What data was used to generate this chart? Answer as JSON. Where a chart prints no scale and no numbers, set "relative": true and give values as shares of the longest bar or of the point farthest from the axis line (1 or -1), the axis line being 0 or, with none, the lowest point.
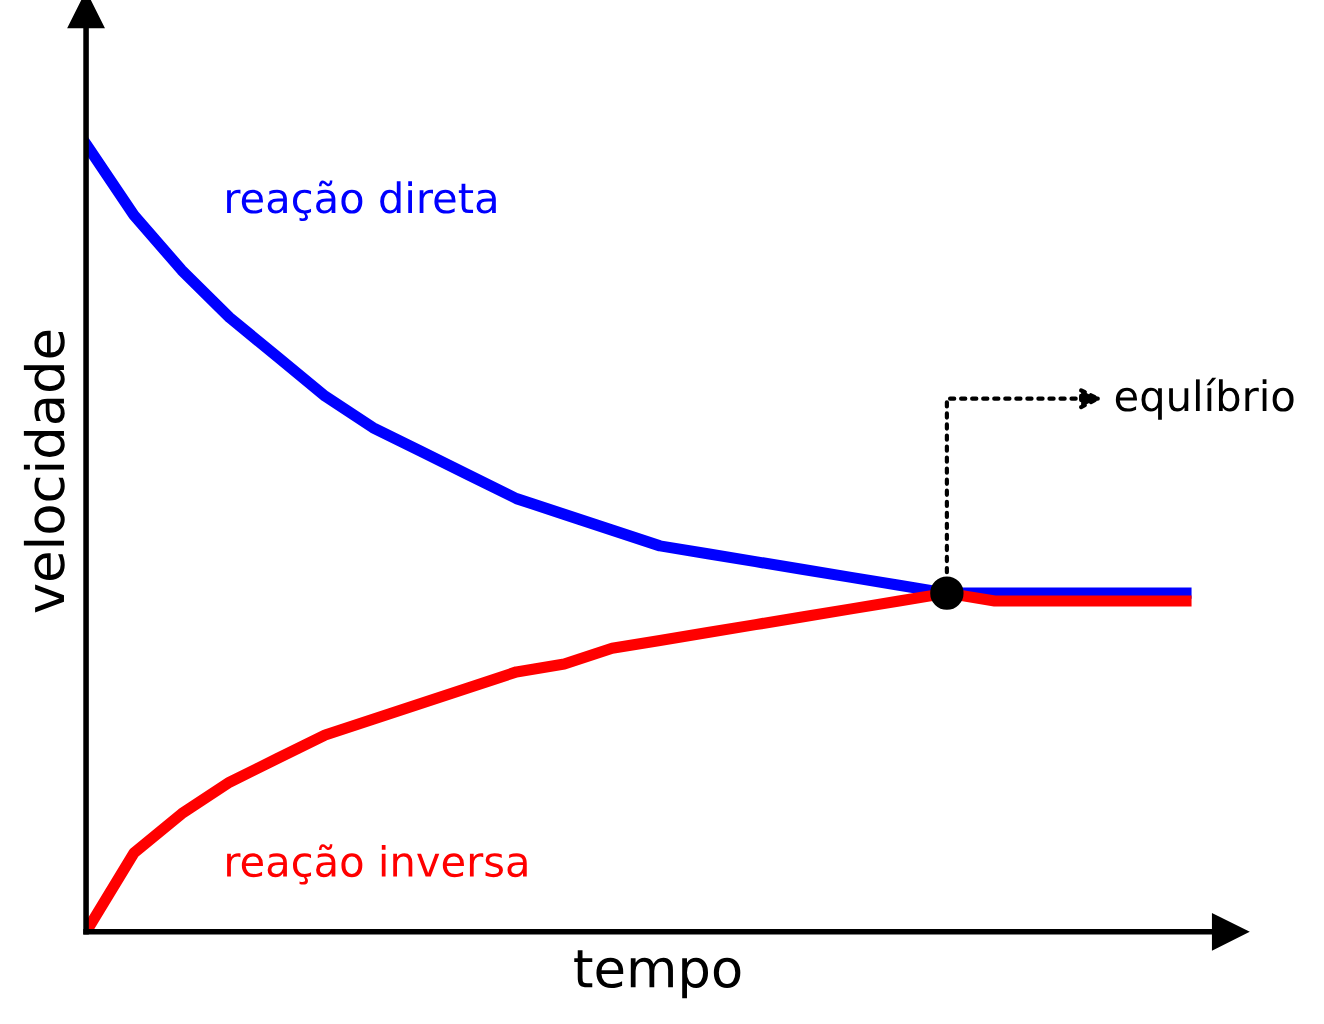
{
  "chart_data": {
    "type": "line",
    "relative": true,
    "xlabel": "tempo",
    "ylabel": "velocidade",
    "categories": [
      null,
      null,
      null,
      null,
      null,
      null,
      null,
      null,
      null,
      null,
      null,
      null,
      null,
      null,
      null,
      null,
      null,
      null,
      null,
      null,
      null,
      null,
      null,
      null
    ],
    "series": [
      {
        "name": "reação direta",
        "color": "#0000ff",
        "values": [
          1.0,
          0.91,
          0.84,
          0.78,
          0.73,
          0.68,
          0.64,
          0.61,
          0.58,
          0.55,
          0.53,
          0.51,
          0.49,
          0.48,
          0.47,
          0.46,
          0.45,
          0.44,
          0.43,
          0.43,
          0.43,
          0.43,
          0.43,
          0.43
        ]
      },
      {
        "name": "reação inversa",
        "color": "#ff0000",
        "values": [
          0.0,
          0.1,
          0.15,
          0.19,
          0.22,
          0.25,
          0.27,
          0.29,
          0.31,
          0.33,
          0.34,
          0.36,
          0.37,
          0.38,
          0.39,
          0.4,
          0.41,
          0.42,
          0.43,
          0.42,
          0.42,
          0.42,
          0.42,
          0.42
        ]
      }
    ],
    "annotations": [
      "equlíbrio"
    ]
  }
}
